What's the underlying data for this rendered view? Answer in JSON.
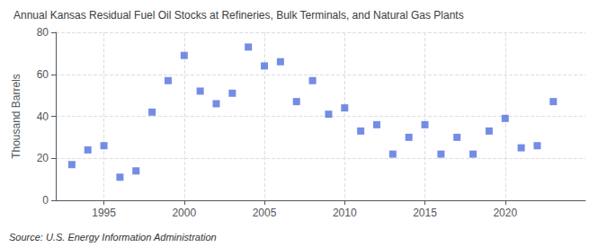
{
  "chart_data": {
    "type": "scatter",
    "title": "Annual Kansas Residual Fuel Oil Stocks at Refineries, Bulk Terminals, and Natural Gas Plants",
    "ylabel": "Thousand Barrels",
    "annotations": [
      "Source: U.S. Energy Information Administration"
    ],
    "x": [
      1993,
      1994,
      1995,
      1996,
      1997,
      1998,
      1999,
      2000,
      2001,
      2002,
      2003,
      2004,
      2005,
      2006,
      2007,
      2008,
      2009,
      2010,
      2011,
      2012,
      2013,
      2014,
      2015,
      2016,
      2017,
      2018,
      2019,
      2020,
      2021,
      2022,
      2023
    ],
    "values": [
      17,
      24,
      26,
      11,
      14,
      42,
      57,
      69,
      52,
      46,
      51,
      73,
      64,
      66,
      47,
      57,
      41,
      44,
      33,
      36,
      22,
      30,
      36,
      22,
      30,
      22,
      33,
      39,
      25,
      26,
      47
    ],
    "marker": "square",
    "xlim": [
      1992,
      2025
    ],
    "xticks": [
      1995,
      2000,
      2005,
      2010,
      2015,
      2020
    ],
    "ylim": [
      0,
      80
    ],
    "yticks": [
      0,
      20,
      40,
      60,
      80
    ],
    "grid": true
  }
}
